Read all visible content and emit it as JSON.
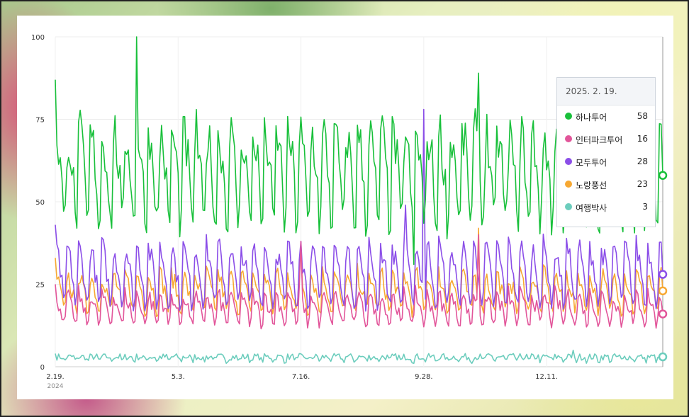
{
  "tooltip": {
    "date": "2025. 2. 19.",
    "rows": [
      {
        "name": "하나투어",
        "value": "58",
        "color": "#19c03b"
      },
      {
        "name": "인터파크투어",
        "value": "16",
        "color": "#e2559a"
      },
      {
        "name": "모두투어",
        "value": "28",
        "color": "#8b4ee8"
      },
      {
        "name": "노랑풍선",
        "value": "23",
        "color": "#f7a832"
      },
      {
        "name": "여행박사",
        "value": "3",
        "color": "#6ccdbd"
      }
    ]
  },
  "chart_data": {
    "type": "line",
    "x_start": "2024-02-19",
    "x_end": "2025-02-19",
    "x_ticks": [
      "2.19.",
      "5.3.",
      "7.16.",
      "9.28.",
      "12.11."
    ],
    "x_year_label": "2024",
    "y_ticks": [
      "0",
      "25",
      "50",
      "75",
      "100"
    ],
    "ylim": [
      0,
      100
    ],
    "grid": true,
    "series": [
      {
        "name": "하나투어",
        "color": "#19c03b",
        "period": 7,
        "weekday_profile": [
          68,
          70,
          66,
          62,
          55,
          44,
          46
        ],
        "start_value": 87,
        "end_value": 58,
        "spikes": [
          {
            "date": "2024-04-08",
            "value": 100
          },
          {
            "date": "2024-09-22",
            "value": 31
          },
          {
            "date": "2024-10-31",
            "value": 89
          }
        ]
      },
      {
        "name": "인터파크투어",
        "color": "#e2559a",
        "period": 7,
        "weekday_profile": [
          22,
          21,
          19,
          18,
          16,
          13,
          14
        ],
        "start_value": 25,
        "end_value": 16,
        "spikes": [
          {
            "date": "2024-07-16",
            "value": 38
          },
          {
            "date": "2024-10-31",
            "value": 40
          }
        ]
      },
      {
        "name": "모두투어",
        "color": "#8b4ee8",
        "period": 7,
        "weekday_profile": [
          36,
          35,
          32,
          29,
          25,
          19,
          21
        ],
        "start_value": 43,
        "end_value": 28,
        "spikes": [
          {
            "date": "2024-09-28",
            "value": 78
          },
          {
            "date": "2024-09-17",
            "value": 49
          },
          {
            "date": "2024-07-16",
            "value": 38
          }
        ]
      },
      {
        "name": "노랑풍선",
        "color": "#f7a832",
        "period": 7,
        "weekday_profile": [
          28,
          27,
          25,
          23,
          21,
          17,
          18
        ],
        "start_value": 33,
        "end_value": 23,
        "spikes": [
          {
            "date": "2024-10-31",
            "value": 42
          },
          {
            "date": "2024-07-16",
            "value": 35
          }
        ]
      },
      {
        "name": "여행박사",
        "color": "#6ccdbd",
        "period": 7,
        "weekday_profile": [
          3,
          3,
          3,
          3,
          3,
          2,
          2
        ],
        "start_value": 4,
        "end_value": 3,
        "spikes": [
          {
            "date": "2024-12-27",
            "value": 5
          }
        ]
      }
    ]
  }
}
